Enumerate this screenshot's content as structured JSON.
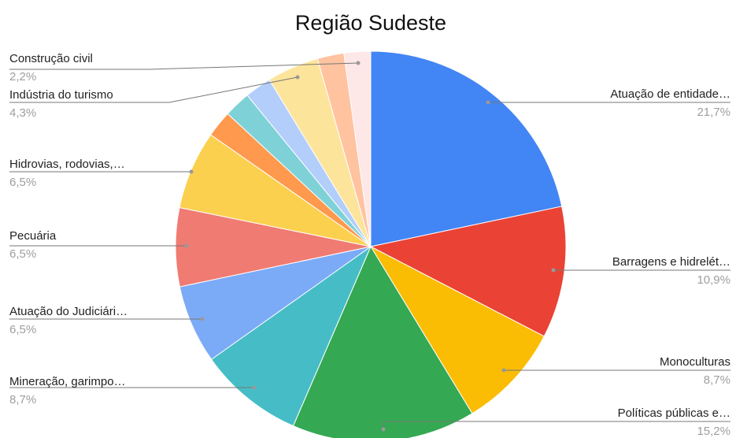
{
  "chart_data": {
    "type": "pie",
    "title": "Região Sudeste",
    "categories": [
      "Atuação de entidade…",
      "Barragens e hidrelét…",
      "Monoculturas",
      "Políticas públicas e…",
      "Mineração, garimpo…",
      "Atuação do Judiciári…",
      "Pecuária",
      "Hidrovias, rodovias,…",
      null,
      null,
      null,
      "Indústria do turismo",
      null,
      "Construção civil"
    ],
    "values": [
      21.7,
      10.9,
      8.7,
      15.2,
      8.7,
      6.5,
      6.5,
      6.5,
      2.2,
      2.2,
      2.2,
      4.3,
      2.2,
      2.2
    ],
    "value_labels": [
      "21,7%",
      "10,9%",
      "8,7%",
      "15,2%",
      "8,7%",
      "6,5%",
      "6,5%",
      "6,5%",
      null,
      null,
      null,
      "4,3%",
      null,
      "2,2%"
    ],
    "colors": [
      "#4285f4",
      "#ea4335",
      "#fbbc04",
      "#34a853",
      "#46bdc6",
      "#7baaf7",
      "#f07b72",
      "#fcd04f",
      "#ff994d",
      "#7ed1d7",
      "#b3cefb",
      "#fde49b",
      "#ffc3a0",
      "#fde7e7"
    ]
  }
}
